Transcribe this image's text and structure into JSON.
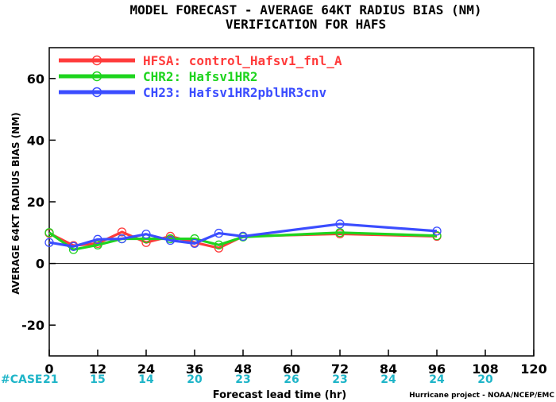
{
  "chart_data": {
    "type": "line",
    "title": "MODEL FORECAST - AVERAGE 64KT RADIUS BIAS (NM)",
    "subtitle": "VERIFICATION FOR HAFS",
    "xlabel": "Forecast lead time (hr)",
    "ylabel": "AVERAGE 64KT RADIUS BIAS (NM)",
    "xlim": [
      0,
      120
    ],
    "ylim": [
      -30,
      70
    ],
    "x_ticks": [
      0,
      12,
      24,
      36,
      48,
      60,
      72,
      84,
      96,
      108,
      120
    ],
    "y_ticks": [
      -20,
      0,
      20,
      40,
      60
    ],
    "grid": false,
    "zero_line": true,
    "legend_position": "top-left",
    "case_label": "#CASE",
    "case_counts": [
      {
        "x": 0,
        "n": "21"
      },
      {
        "x": 12,
        "n": "15"
      },
      {
        "x": 24,
        "n": "14"
      },
      {
        "x": 36,
        "n": "20"
      },
      {
        "x": 48,
        "n": "23"
      },
      {
        "x": 60,
        "n": "26"
      },
      {
        "x": 72,
        "n": "23"
      },
      {
        "x": 84,
        "n": "24"
      },
      {
        "x": 96,
        "n": "24"
      },
      {
        "x": 108,
        "n": "20"
      }
    ],
    "credit": "Hurricane project - NOAA/NCEP/EMC",
    "series": [
      {
        "name": "HFSA: control_Hafsv1_fnl_A",
        "color": "#ff3b3b",
        "x": [
          0,
          6,
          12,
          18,
          24,
          30,
          36,
          42,
          48,
          72,
          96
        ],
        "y": [
          9.8,
          5.8,
          6.5,
          10.2,
          6.8,
          8.8,
          6.8,
          5.0,
          8.8,
          9.6,
          8.8
        ]
      },
      {
        "name": "CHR2: Hafsv1HR2",
        "color": "#1ed41e",
        "x": [
          0,
          6,
          12,
          18,
          24,
          30,
          36,
          42,
          48,
          72,
          96
        ],
        "y": [
          10.0,
          4.5,
          6.0,
          8.0,
          8.0,
          8.0,
          8.0,
          6.0,
          8.6,
          10.0,
          9.0
        ]
      },
      {
        "name": "CH23: Hafsv1HR2pblHR3cnv",
        "color": "#3b4dff",
        "x": [
          0,
          6,
          12,
          18,
          24,
          30,
          36,
          42,
          48,
          72,
          96
        ],
        "y": [
          6.8,
          5.5,
          7.8,
          8.0,
          9.5,
          7.5,
          6.5,
          9.8,
          8.8,
          12.8,
          10.5
        ]
      }
    ]
  }
}
